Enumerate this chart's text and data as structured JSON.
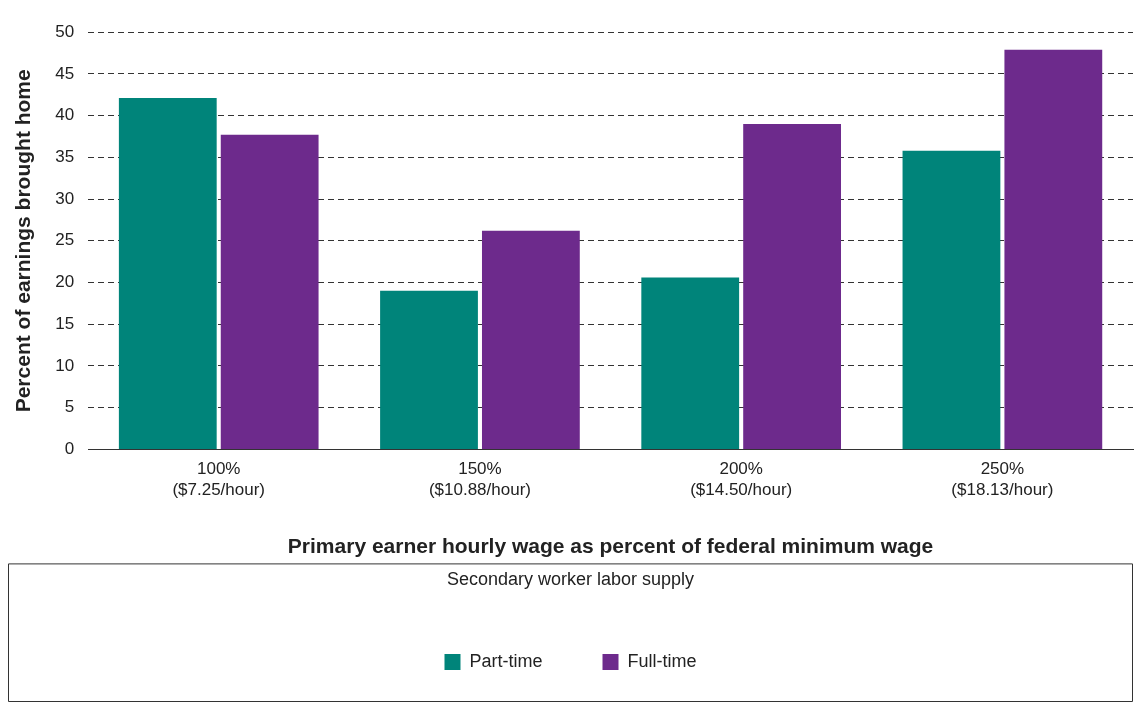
{
  "chart_data": {
    "type": "bar",
    "xlabel": "Primary earner hourly wage as percent of federal minimum wage",
    "ylabel": "Percent of earnings brought home",
    "legend_title": "Secondary worker labor supply",
    "categories": [
      "100%\n($7.25/hour)",
      "150%\n($10.88/hour)",
      "200%\n($14.50/hour)",
      "250%\n($18.13/hour)"
    ],
    "series": [
      {
        "name": "Part-time",
        "color": "#00847a",
        "values": [
          42.1,
          19.0,
          20.6,
          35.8
        ]
      },
      {
        "name": "Full-time",
        "color": "#6d2a8c",
        "values": [
          37.7,
          26.2,
          39.0,
          47.9
        ]
      }
    ],
    "ylim": [
      0,
      50
    ],
    "yticks": [
      0,
      5,
      10,
      15,
      20,
      25,
      30,
      35,
      40,
      45,
      50
    ],
    "grid": "y",
    "legend": "bottom"
  }
}
